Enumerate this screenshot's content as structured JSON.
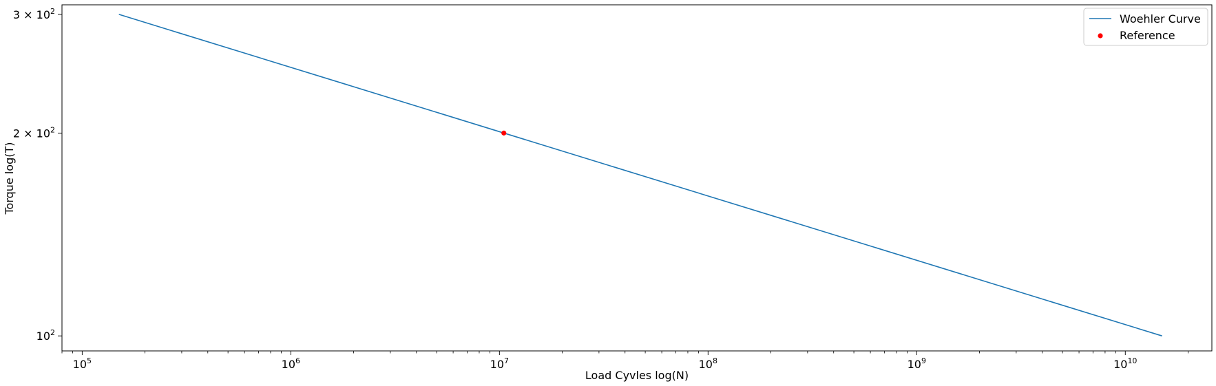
{
  "chart_data": {
    "type": "line",
    "xlabel": "Load Cyvles log(N)",
    "ylabel": "Torque log(T)",
    "xscale": "log",
    "yscale": "log",
    "xlim": [
      80000,
      26000000000
    ],
    "ylim": [
      95,
      310
    ],
    "x_ticks": [
      {
        "value": 100000,
        "base": "10",
        "exp": "5"
      },
      {
        "value": 1000000,
        "base": "10",
        "exp": "6"
      },
      {
        "value": 10000000,
        "base": "10",
        "exp": "7"
      },
      {
        "value": 100000000,
        "base": "10",
        "exp": "8"
      },
      {
        "value": 1000000000,
        "base": "10",
        "exp": "9"
      },
      {
        "value": 10000000000,
        "base": "10",
        "exp": "10"
      }
    ],
    "y_ticks": [
      {
        "value": 100,
        "prefix": "",
        "base": "10",
        "exp": "2"
      },
      {
        "value": 200,
        "prefix": "2 × ",
        "base": "10",
        "exp": "2"
      },
      {
        "value": 300,
        "prefix": "3 × ",
        "base": "10",
        "exp": "2"
      }
    ],
    "grid": false,
    "legend_position": "top-right",
    "series": [
      {
        "name": "Woehler Curve",
        "kind": "line",
        "color": "#1f77b4",
        "x": [
          150000,
          15000000000
        ],
        "y": [
          300,
          100
        ]
      },
      {
        "name": "Reference",
        "kind": "scatter",
        "color": "#ff0000",
        "x": [
          10500000
        ],
        "y": [
          200
        ]
      }
    ]
  }
}
